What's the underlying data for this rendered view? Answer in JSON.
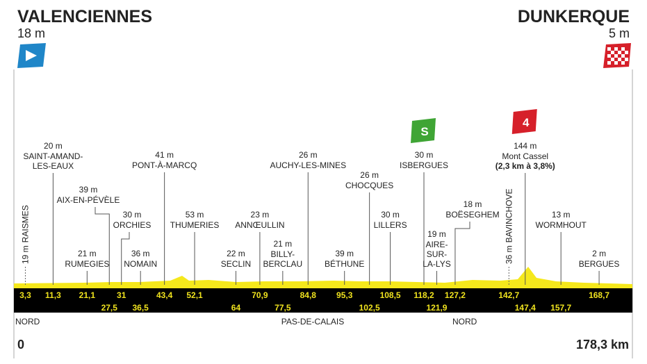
{
  "start": {
    "name": "VALENCIENNES",
    "altitude": "18 m"
  },
  "finish": {
    "name": "DUNKERQUE",
    "altitude": "5 m"
  },
  "waypoints": [
    {
      "km": "3,3",
      "altitude": "19 m",
      "name": [
        "RAISMES"
      ]
    },
    {
      "km": "11,3",
      "altitude": "20 m",
      "name": [
        "SAINT-AMAND-",
        "LES-EAUX"
      ]
    },
    {
      "km": "21,1",
      "altitude": "21 m",
      "name": [
        "RUMEGIES"
      ]
    },
    {
      "km": "27,5",
      "altitude": "39 m",
      "name": [
        "AIX-EN-PÉVÈLE"
      ]
    },
    {
      "km": "31",
      "altitude": "30 m",
      "name": [
        "ORCHIES"
      ]
    },
    {
      "km": "36,5",
      "altitude": "36 m",
      "name": [
        "NOMAIN"
      ]
    },
    {
      "km": "43,4",
      "altitude": "41 m",
      "name": [
        "PONT-À-MARCQ"
      ]
    },
    {
      "km": "52,1",
      "altitude": "53 m",
      "name": [
        "THUMERIES"
      ]
    },
    {
      "km": "64",
      "altitude": "22 m",
      "name": [
        "SECLIN"
      ]
    },
    {
      "km": "70,9",
      "altitude": "23 m",
      "name": [
        "ANNŒULLIN"
      ]
    },
    {
      "km": "77,5",
      "altitude": "21 m",
      "name": [
        "BILLY-",
        "BERCLAU"
      ]
    },
    {
      "km": "84,8",
      "altitude": "26 m",
      "name": [
        "AUCHY-LES-MINES"
      ]
    },
    {
      "km": "95,3",
      "altitude": "39 m",
      "name": [
        "BÉTHUNE"
      ]
    },
    {
      "km": "102,5",
      "altitude": "26 m",
      "name": [
        "CHOCQUES"
      ]
    },
    {
      "km": "108,5",
      "altitude": "30 m",
      "name": [
        "LILLERS"
      ]
    },
    {
      "km": "118,2",
      "altitude": "30 m",
      "name": [
        "ISBERGUES"
      ],
      "badge": "S"
    },
    {
      "km": "121,9",
      "altitude": "19 m",
      "name": [
        "AIRE-",
        "SUR-",
        "LA-LYS"
      ]
    },
    {
      "km": "127,2",
      "altitude": "18 m",
      "name": [
        "BOËSEGHEM"
      ]
    },
    {
      "km": "142,7",
      "altitude": "36 m",
      "name": [
        "BAVINCHOVE"
      ]
    },
    {
      "km": "147,4",
      "altitude": "144 m",
      "name": [
        "Mont Cassel",
        "(2,3 km à 3,8%)"
      ],
      "badge": "4"
    },
    {
      "km": "157,7",
      "altitude": "13 m",
      "name": [
        "WORMHOUT"
      ]
    },
    {
      "km": "168,7",
      "altitude": "2 m",
      "name": [
        "BERGUES"
      ]
    }
  ],
  "regions": [
    "NORD",
    "PAS-DE-CALAIS",
    "NORD"
  ],
  "distance_start": "0",
  "distance_total": "178,3 km"
}
